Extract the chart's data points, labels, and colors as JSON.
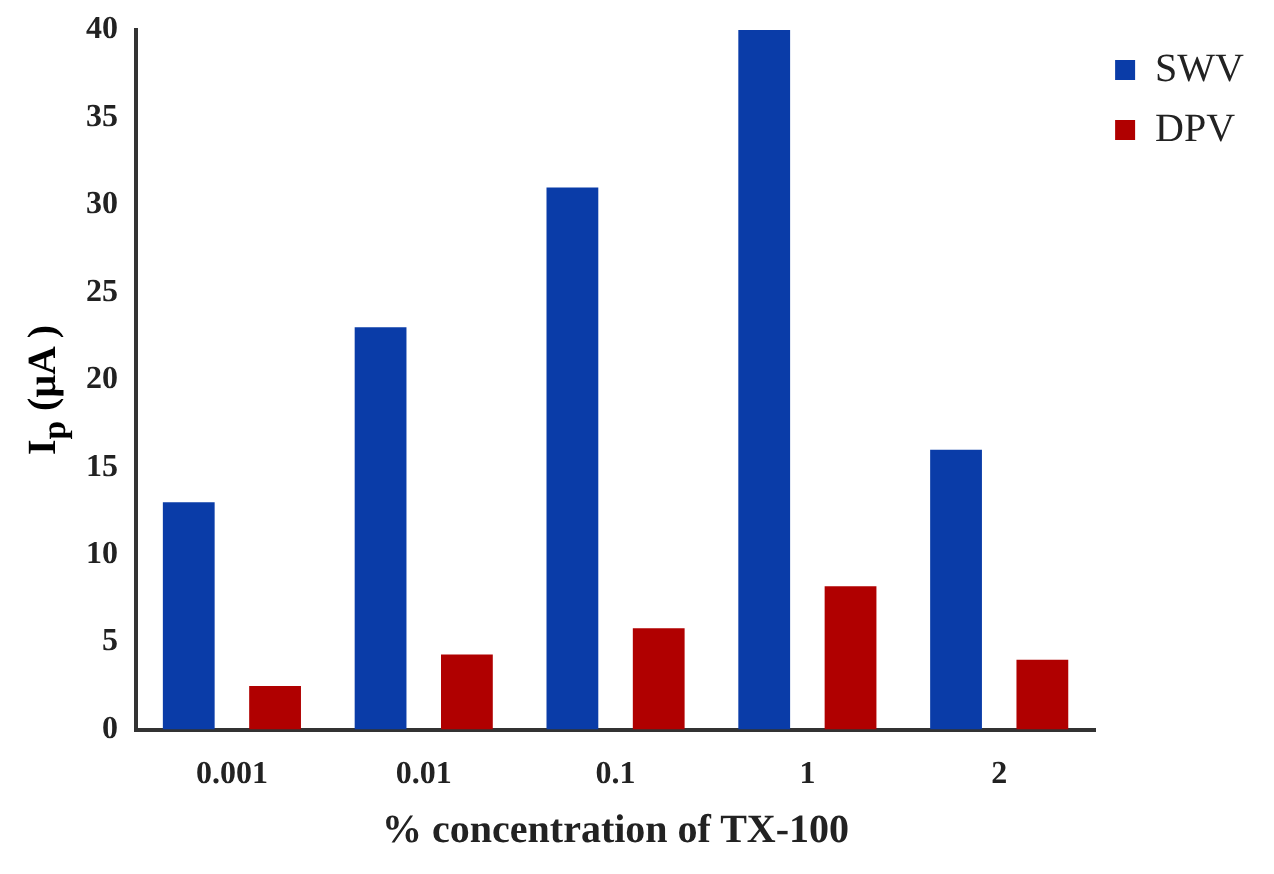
{
  "chart_data": {
    "type": "bar",
    "xlabel": "% concentration of TX-100",
    "ylabel": "I$_{p}$ (μA )",
    "categories": [
      "0.001",
      "0.01",
      "0.1",
      "1",
      "2"
    ],
    "series": [
      {
        "name": "SWV",
        "color": "#0a3ca8",
        "values": [
          13,
          23,
          31,
          40,
          16
        ]
      },
      {
        "name": "DPV",
        "color": "#b00000",
        "values": [
          2.5,
          4.3,
          5.8,
          8.2,
          4
        ]
      }
    ],
    "ylim": [
      0,
      40
    ],
    "yticks": [
      0,
      5,
      10,
      15,
      20,
      25,
      30,
      35,
      40
    ],
    "grid": false,
    "legend": "top right"
  }
}
